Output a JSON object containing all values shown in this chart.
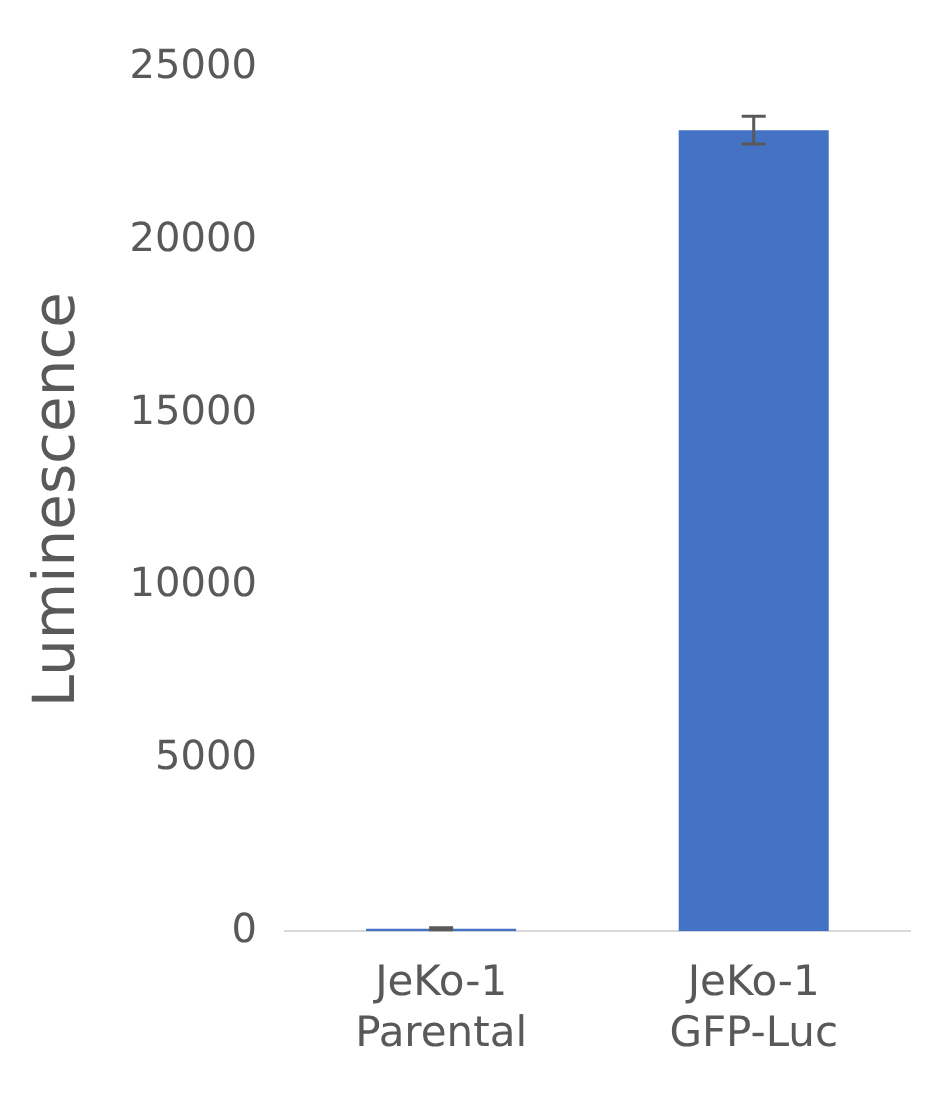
{
  "chart_data": {
    "type": "bar",
    "ylabel": "Luminescence",
    "categories": [
      "JeKo-1 Parental",
      "JeKo-1 GFP-Luc"
    ],
    "values": [
      70,
      23200
    ],
    "errors": [
      30,
      400
    ],
    "color": "#4472c4",
    "ylim": [
      0,
      25000
    ],
    "yticks": [
      0,
      5000,
      10000,
      15000,
      20000,
      25000
    ],
    "grid": false,
    "legend": false
  }
}
